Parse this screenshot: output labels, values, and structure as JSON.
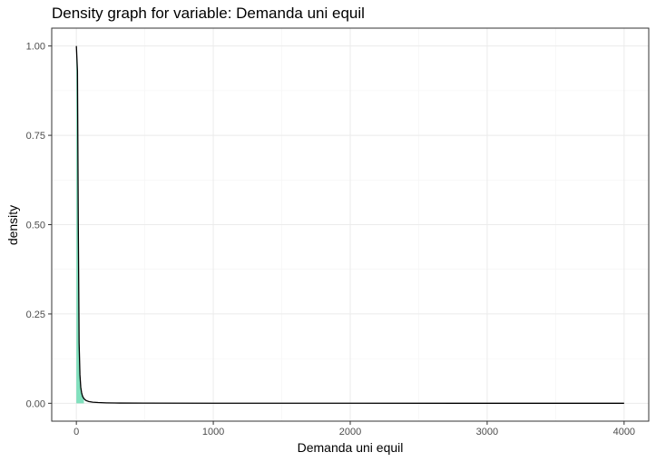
{
  "chart_data": {
    "type": "area",
    "title": "Density graph for variable: Demanda uni equil",
    "xlabel": "Demanda uni equil",
    "ylabel": "density",
    "xlim": [
      -180,
      4180
    ],
    "ylim": [
      -0.05,
      1.05
    ],
    "x_ticks": [
      0,
      1000,
      2000,
      3000,
      4000
    ],
    "x_tick_labels": [
      "0",
      "1000",
      "2000",
      "3000",
      "4000"
    ],
    "y_ticks": [
      0,
      0.25,
      0.5,
      0.75,
      1
    ],
    "y_tick_labels": [
      "0.00",
      "0.25",
      "0.50",
      "0.75",
      "1.00"
    ],
    "grid": true,
    "series": [
      {
        "name": "density",
        "x": [
          0,
          8,
          14,
          20,
          26,
          32,
          38,
          45,
          55,
          70,
          90,
          120,
          160,
          220,
          320,
          500,
          1000,
          2000,
          3000,
          4000
        ],
        "y": [
          1.0,
          0.93,
          0.5,
          0.17,
          0.08,
          0.045,
          0.03,
          0.02,
          0.013,
          0.008,
          0.005,
          0.003,
          0.002,
          0.0012,
          0.0007,
          0.0004,
          0.0002,
          0.0001,
          5e-05,
          0.0
        ]
      }
    ],
    "fill_x_max": 60,
    "colors": {
      "fill": "#57d7a8",
      "line": "#000000",
      "panel_border": "#333333",
      "grid_major": "#ebebeb",
      "grid_minor": "#f4f4f4",
      "tick": "#333333"
    }
  }
}
